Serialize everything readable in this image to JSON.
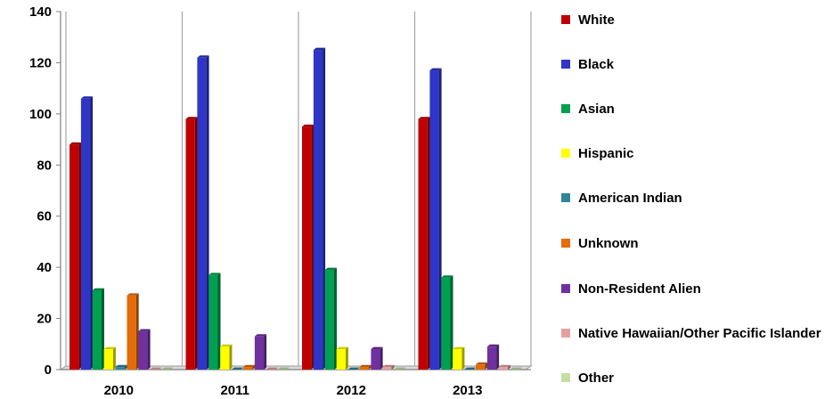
{
  "chart_data": {
    "type": "bar",
    "categories": [
      "2010",
      "2011",
      "2012",
      "2013"
    ],
    "ylim": [
      0,
      140
    ],
    "yticks": [
      "0",
      "20",
      "40",
      "60",
      "80",
      "100",
      "120",
      "140"
    ],
    "grid": "vertical lines between categories",
    "legend_position": "right",
    "series": [
      {
        "name": "White",
        "color": "#c00000",
        "values": [
          88,
          98,
          95,
          98
        ]
      },
      {
        "name": "Black",
        "color": "#2e35c7",
        "values": [
          106,
          122,
          125,
          117
        ]
      },
      {
        "name": "Asian",
        "color": "#00a050",
        "values": [
          31,
          37,
          39,
          36
        ]
      },
      {
        "name": "Hispanic",
        "color": "#ffff00",
        "values": [
          8,
          9,
          8,
          8
        ]
      },
      {
        "name": "American Indian",
        "color": "#31849b",
        "values": [
          1,
          0,
          0,
          0
        ]
      },
      {
        "name": "Unknown",
        "color": "#e46c0a",
        "values": [
          29,
          1,
          1,
          2
        ]
      },
      {
        "name": "Non-Resident Alien",
        "color": "#7030a0",
        "values": [
          15,
          13,
          8,
          9
        ]
      },
      {
        "name": "Native Hawaiian/Other Pacific Islander",
        "color": "#e6a0a0",
        "values": [
          0,
          0,
          1,
          1
        ]
      },
      {
        "name": "Other",
        "color": "#c4dfa0",
        "values": [
          0,
          0,
          0,
          0
        ]
      }
    ]
  }
}
